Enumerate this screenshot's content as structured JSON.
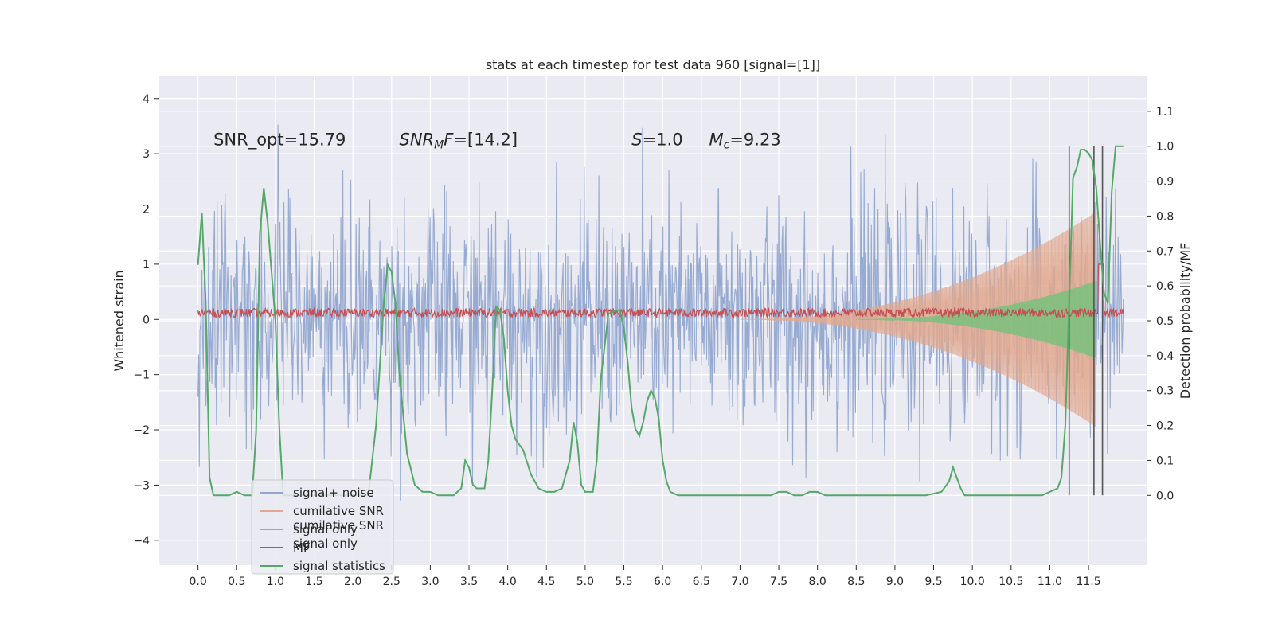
{
  "chart_data": {
    "type": "line",
    "title": "stats at each timestep for test data 960 [signal=[1]]",
    "xlabel": "",
    "ylabel": "Whitened strain",
    "y2label": "Detection probability/MF",
    "xlim": [
      -0.5,
      12.25
    ],
    "ylim": [
      -4.45,
      4.4
    ],
    "y2lim": [
      -0.2,
      1.2
    ],
    "xticks": [
      0.0,
      0.5,
      1.0,
      1.5,
      2.0,
      2.5,
      3.0,
      3.5,
      4.0,
      4.5,
      5.0,
      5.5,
      6.0,
      6.5,
      7.0,
      7.5,
      8.0,
      8.5,
      9.0,
      9.5,
      10.0,
      10.5,
      11.0,
      11.5
    ],
    "xtick_labels": [
      "0.0",
      "0.5",
      "1.0",
      "1.5",
      "2.0",
      "2.5",
      "3.0",
      "3.5",
      "4.0",
      "4.5",
      "5.0",
      "5.5",
      "6.0",
      "6.5",
      "7.0",
      "7.5",
      "8.0",
      "8.5",
      "9.0",
      "9.5",
      "10.0",
      "10.5",
      "11.0",
      "11.5"
    ],
    "yticks": [
      -4,
      -3,
      -2,
      -1,
      0,
      1,
      2,
      3,
      4
    ],
    "ytick_labels": [
      "−4",
      "−3",
      "−2",
      "−1",
      "0",
      "1",
      "2",
      "3",
      "4"
    ],
    "y2ticks": [
      0.0,
      0.1,
      0.2,
      0.3,
      0.4,
      0.5,
      0.6,
      0.7,
      0.8,
      0.9,
      1.0,
      1.1
    ],
    "y2tick_labels": [
      "0.0",
      "0.1",
      "0.2",
      "0.3",
      "0.4",
      "0.5",
      "0.6",
      "0.7",
      "0.8",
      "0.9",
      "1.0",
      "1.1"
    ],
    "grid": true,
    "legend_position": "lower-left",
    "annotations": [
      {
        "text": "SNR_opt=15.79",
        "x": 0.2,
        "y": 3.15
      },
      {
        "text": "SNR_MF=[14.2]",
        "x": 2.6,
        "y": 3.15
      },
      {
        "text": "S=1.0",
        "x": 5.6,
        "y": 3.15
      },
      {
        "text": "M_c=9.23",
        "x": 6.6,
        "y": 3.15
      }
    ],
    "vlines": {
      "x": [
        11.25,
        11.57,
        11.68
      ],
      "y2_range": [
        0.0,
        1.0
      ],
      "color": "#555555"
    },
    "series": [
      {
        "name": "signal+ noise",
        "color": "#92a7d0",
        "axis": "y",
        "description": "whitened noise plus signal, std ~1, range about -4.1 to 4.05",
        "x_range": [
          0.0,
          11.95
        ],
        "noise_sigma": 1.0,
        "peak_max": 4.05,
        "peak_min": -4.1
      },
      {
        "name": "cumilative SNR",
        "color": "#e0a88e",
        "axis": "y",
        "description": "chirp envelope growing from 0 near t=7.0 to about ±1.9 at t=11.55",
        "onset": 7.0,
        "end": 11.6,
        "peak": 1.95
      },
      {
        "name": "signal only",
        "color": "#7fbf7f",
        "axis": "y",
        "description": "chirp signal growing from 0 near t=8.5 to about ±0.7 at t=11.55",
        "onset": 8.5,
        "end": 11.6,
        "peak": 0.7
      },
      {
        "name": "MF",
        "color": "#c44e52",
        "axis": "y",
        "description": "matched filter noise band around 0.1 with small jitter; small spike near t=11.65",
        "base": 0.12,
        "jitter": 0.08
      },
      {
        "name": "signal statistics",
        "color": "#55a868",
        "axis": "y2",
        "x": [
          0.0,
          0.05,
          0.1,
          0.15,
          0.2,
          0.3,
          0.4,
          0.5,
          0.6,
          0.65,
          0.7,
          0.75,
          0.8,
          0.85,
          0.9,
          1.0,
          1.05,
          1.1,
          1.2,
          2.2,
          2.3,
          2.4,
          2.45,
          2.5,
          2.55,
          2.6,
          2.7,
          2.8,
          2.9,
          3.0,
          3.1,
          3.3,
          3.4,
          3.45,
          3.5,
          3.55,
          3.6,
          3.7,
          3.75,
          3.8,
          3.85,
          3.9,
          3.95,
          4.0,
          4.05,
          4.1,
          4.2,
          4.3,
          4.4,
          4.5,
          4.6,
          4.7,
          4.8,
          4.85,
          4.9,
          4.95,
          5.0,
          5.05,
          5.1,
          5.15,
          5.2,
          5.3,
          5.4,
          5.45,
          5.5,
          5.55,
          5.6,
          5.65,
          5.7,
          5.75,
          5.8,
          5.85,
          5.9,
          5.95,
          6.0,
          6.05,
          6.1,
          6.2,
          6.3,
          6.4,
          6.5,
          7.4,
          7.5,
          7.6,
          7.7,
          7.8,
          7.9,
          8.0,
          8.1,
          8.2,
          8.4,
          8.6,
          8.8,
          9.0,
          9.4,
          9.6,
          9.7,
          9.75,
          9.8,
          9.85,
          9.9,
          10.0,
          10.5,
          10.9,
          11.0,
          11.1,
          11.15,
          11.2,
          11.25,
          11.3,
          11.35,
          11.4,
          11.45,
          11.5,
          11.55,
          11.6,
          11.65,
          11.7,
          11.75,
          11.8,
          11.85,
          11.95
        ],
        "values": [
          0.66,
          0.81,
          0.55,
          0.05,
          0.0,
          0.0,
          0.0,
          0.01,
          0.0,
          0.0,
          0.0,
          0.18,
          0.75,
          0.88,
          0.78,
          0.5,
          0.2,
          0.0,
          0.0,
          0.0,
          0.2,
          0.55,
          0.66,
          0.64,
          0.55,
          0.35,
          0.12,
          0.03,
          0.01,
          0.01,
          0.0,
          0.0,
          0.02,
          0.1,
          0.08,
          0.03,
          0.02,
          0.02,
          0.1,
          0.3,
          0.54,
          0.53,
          0.45,
          0.3,
          0.2,
          0.16,
          0.13,
          0.06,
          0.02,
          0.01,
          0.01,
          0.02,
          0.1,
          0.21,
          0.15,
          0.03,
          0.01,
          0.01,
          0.01,
          0.1,
          0.33,
          0.52,
          0.53,
          0.53,
          0.48,
          0.38,
          0.25,
          0.19,
          0.17,
          0.21,
          0.27,
          0.3,
          0.28,
          0.22,
          0.1,
          0.04,
          0.01,
          0.0,
          0.0,
          0.0,
          0.0,
          0.0,
          0.01,
          0.01,
          0.0,
          0.0,
          0.01,
          0.01,
          0.0,
          0.0,
          0.0,
          0.0,
          0.0,
          0.0,
          0.0,
          0.01,
          0.04,
          0.08,
          0.05,
          0.02,
          0.0,
          0.0,
          0.0,
          0.0,
          0.01,
          0.02,
          0.05,
          0.2,
          0.55,
          0.91,
          0.94,
          0.99,
          0.99,
          0.98,
          0.96,
          0.88,
          0.72,
          0.58,
          0.55,
          0.87,
          1.0,
          1.0
        ]
      }
    ]
  },
  "legend": {
    "items": [
      {
        "label": "signal+ noise",
        "color": "#92a7d0"
      },
      {
        "label": "cumilative SNR",
        "color": "#e0a88e"
      },
      {
        "label": "signal only",
        "color": "#7fbf7f"
      },
      {
        "label": "MF",
        "color": "#c44e52"
      },
      {
        "label": "signal statistics",
        "color": "#55a868"
      }
    ],
    "ghost_labels": [
      "cumilative SNR",
      "signal only"
    ]
  },
  "colors": {
    "plot_background": "#eaeaf2",
    "grid": "#ffffff",
    "text": "#262626"
  }
}
